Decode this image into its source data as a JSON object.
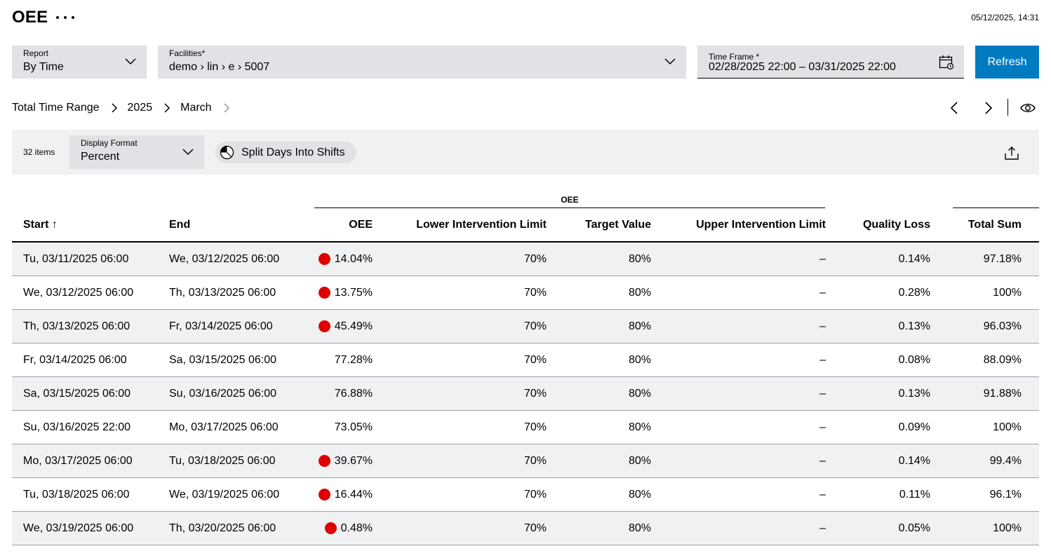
{
  "header": {
    "title": "OEE",
    "more_icon": "more-horizontal-icon",
    "timestamp": "05/12/2025, 14:31"
  },
  "filters": {
    "report": {
      "label": "Report",
      "value": "By Time"
    },
    "facilities": {
      "label": "Facilities*",
      "value": "demo › lin › e › 5007"
    },
    "time_frame": {
      "label": "Time Frame *",
      "value": "02/28/2025 22:00 – 03/31/2025 22:00",
      "icon": "calendar-icon"
    },
    "refresh_label": "Refresh"
  },
  "breadcrumb": {
    "items": [
      "Total Time Range",
      "2025",
      "March"
    ]
  },
  "toolbar": {
    "items_count": "32 items",
    "display_format": {
      "label": "Display Format",
      "value": "Percent"
    },
    "split_label": "Split Days Into Shifts",
    "export_icon": "upload-icon"
  },
  "table": {
    "group_label": "OEE",
    "columns": {
      "start": "Start ↑",
      "end": "End",
      "oee": "OEE",
      "lower": "Lower Intervention Limit",
      "target": "Target Value",
      "upper": "Upper Intervention Limit",
      "quality": "Quality Loss",
      "total": "Total Sum"
    },
    "alert_color": "#e00000",
    "rows": [
      {
        "start": "Tu, 03/11/2025 06:00",
        "end": "We, 03/12/2025 06:00",
        "oee": "14.04%",
        "alert": true,
        "lower": "70%",
        "target": "80%",
        "upper": "–",
        "quality": "0.14%",
        "total": "97.18%"
      },
      {
        "start": "We, 03/12/2025 06:00",
        "end": "Th, 03/13/2025 06:00",
        "oee": "13.75%",
        "alert": true,
        "lower": "70%",
        "target": "80%",
        "upper": "–",
        "quality": "0.28%",
        "total": "100%"
      },
      {
        "start": "Th, 03/13/2025 06:00",
        "end": "Fr, 03/14/2025 06:00",
        "oee": "45.49%",
        "alert": true,
        "lower": "70%",
        "target": "80%",
        "upper": "–",
        "quality": "0.13%",
        "total": "96.03%"
      },
      {
        "start": "Fr, 03/14/2025 06:00",
        "end": "Sa, 03/15/2025 06:00",
        "oee": "77.28%",
        "alert": false,
        "lower": "70%",
        "target": "80%",
        "upper": "–",
        "quality": "0.08%",
        "total": "88.09%"
      },
      {
        "start": "Sa, 03/15/2025 06:00",
        "end": "Su, 03/16/2025 06:00",
        "oee": "76.88%",
        "alert": false,
        "lower": "70%",
        "target": "80%",
        "upper": "–",
        "quality": "0.13%",
        "total": "91.88%"
      },
      {
        "start": "Su, 03/16/2025 22:00",
        "end": "Mo, 03/17/2025 06:00",
        "oee": "73.05%",
        "alert": false,
        "lower": "70%",
        "target": "80%",
        "upper": "–",
        "quality": "0.09%",
        "total": "100%"
      },
      {
        "start": "Mo, 03/17/2025 06:00",
        "end": "Tu, 03/18/2025 06:00",
        "oee": "39.67%",
        "alert": true,
        "lower": "70%",
        "target": "80%",
        "upper": "–",
        "quality": "0.14%",
        "total": "99.4%"
      },
      {
        "start": "Tu, 03/18/2025 06:00",
        "end": "We, 03/19/2025 06:00",
        "oee": "16.44%",
        "alert": true,
        "lower": "70%",
        "target": "80%",
        "upper": "–",
        "quality": "0.11%",
        "total": "96.1%"
      },
      {
        "start": "We, 03/19/2025 06:00",
        "end": "Th, 03/20/2025 06:00",
        "oee": "0.48%",
        "alert": true,
        "lower": "70%",
        "target": "80%",
        "upper": "–",
        "quality": "0.05%",
        "total": "100%"
      }
    ]
  }
}
